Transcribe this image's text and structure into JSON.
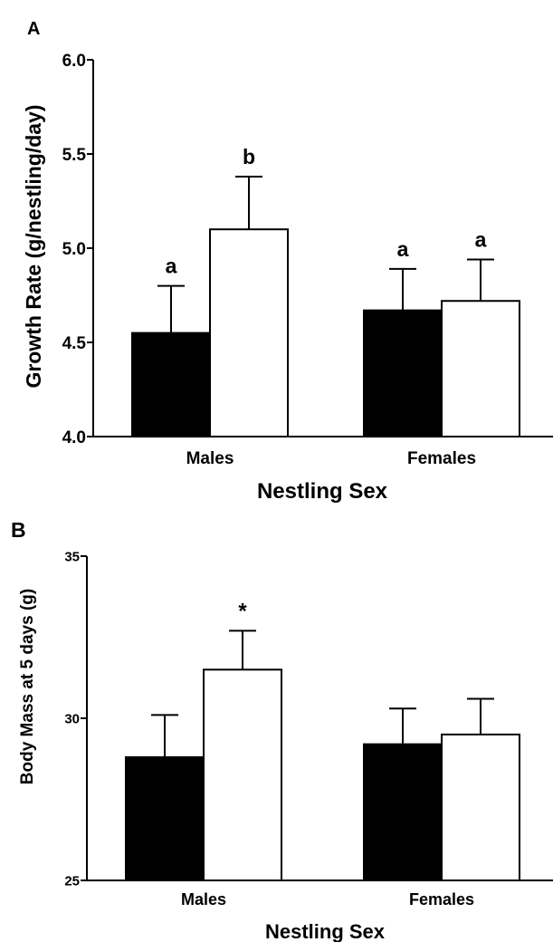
{
  "chart_data": [
    {
      "panel_label": "A",
      "type": "bar",
      "categories": [
        "Males",
        "Females"
      ],
      "series": [
        {
          "color": "#000000",
          "values": [
            4.55,
            4.67
          ],
          "errors": [
            0.25,
            0.22
          ],
          "annotations": [
            "a",
            "a"
          ]
        },
        {
          "color": "#ffffff",
          "values": [
            5.1,
            4.72
          ],
          "errors": [
            0.28,
            0.22
          ],
          "annotations": [
            "b",
            "a"
          ]
        }
      ],
      "xlabel": "Nestling Sex",
      "ylabel": "Growth Rate (g/nestling/day)",
      "ylim": [
        4.0,
        6.0
      ],
      "yticks": [
        "4.0",
        "4.5",
        "5.0",
        "5.5",
        "6.0"
      ],
      "grid": false
    },
    {
      "panel_label": "B",
      "type": "bar",
      "categories": [
        "Males",
        "Females"
      ],
      "series": [
        {
          "color": "#000000",
          "values": [
            28.8,
            29.2
          ],
          "errors": [
            1.3,
            1.1
          ],
          "annotations": [
            "",
            ""
          ]
        },
        {
          "color": "#ffffff",
          "values": [
            31.5,
            29.5
          ],
          "errors": [
            1.2,
            1.1
          ],
          "annotations": [
            "*",
            ""
          ]
        }
      ],
      "xlabel": "Nestling Sex",
      "ylabel": "Body Mass at 5 days (g)",
      "ylim": [
        25,
        35
      ],
      "yticks": [
        "25",
        "30",
        "35"
      ],
      "grid": false
    }
  ]
}
